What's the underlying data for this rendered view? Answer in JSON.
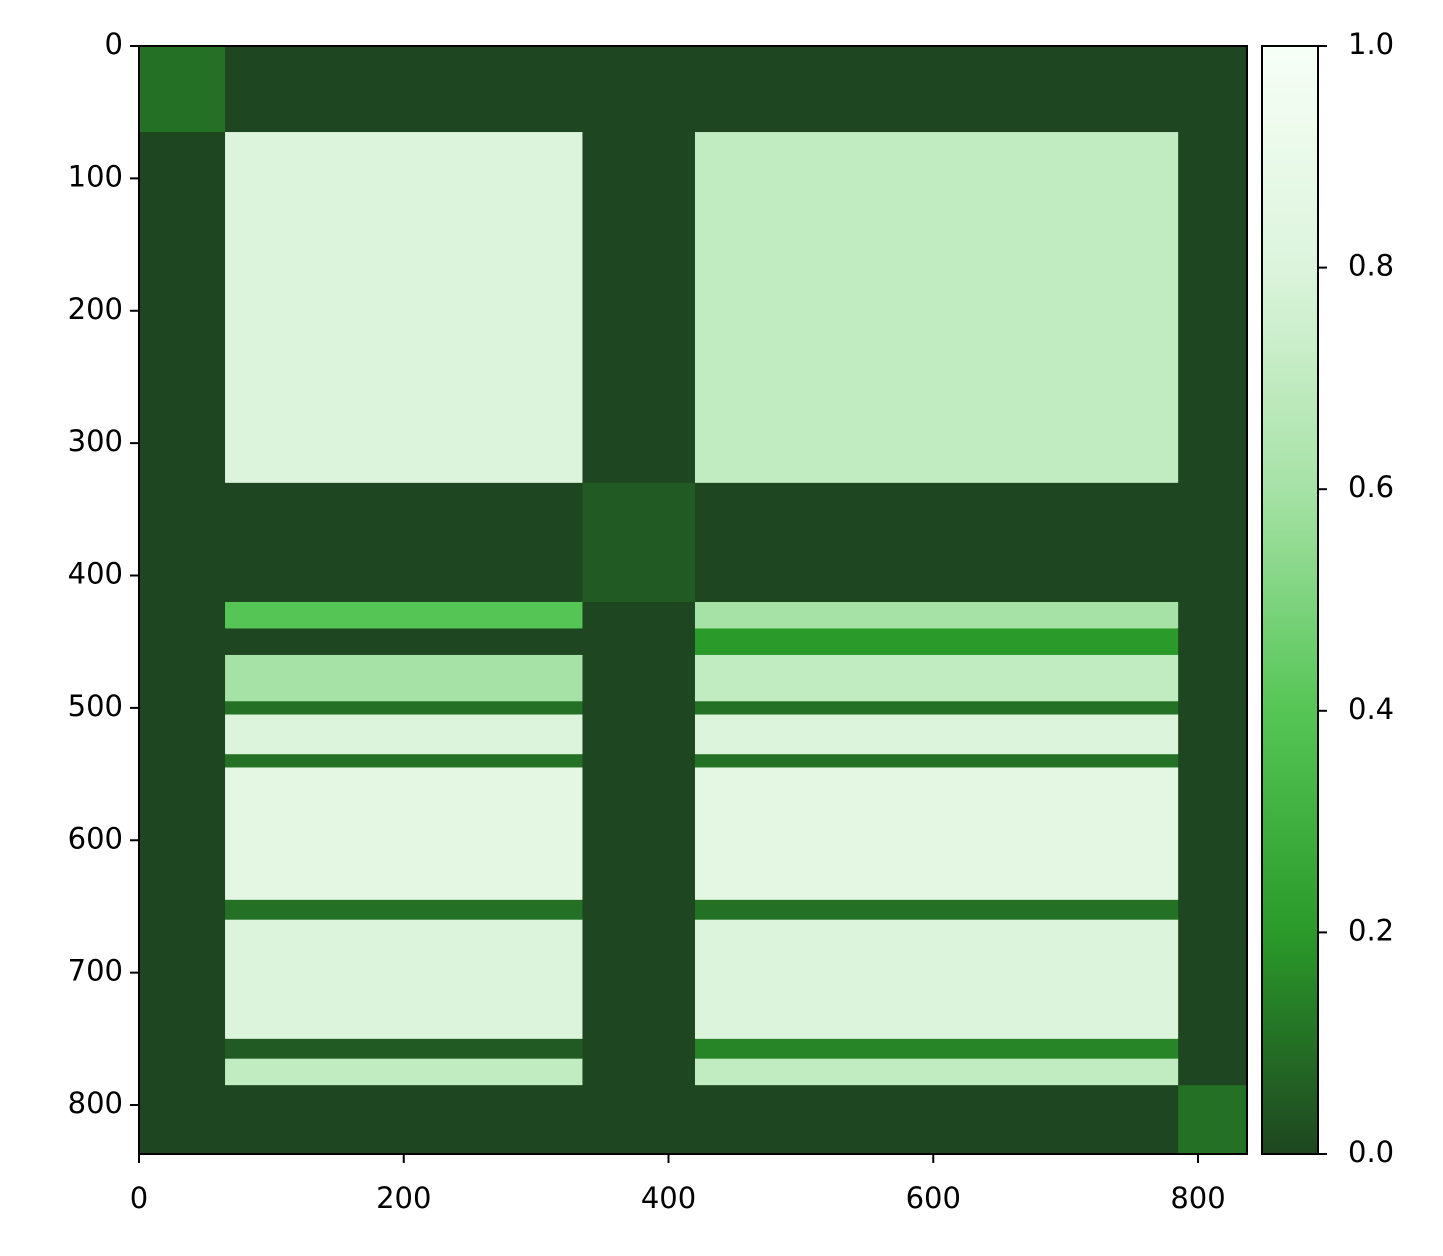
{
  "chart_data": {
    "type": "heatmap",
    "x_edges": [
      0,
      65,
      335,
      420,
      785,
      837
    ],
    "y_edges": [
      0,
      65,
      330,
      420,
      440,
      460,
      495,
      505,
      535,
      545,
      645,
      660,
      750,
      765,
      785,
      837
    ],
    "values": [
      [
        0.1,
        0,
        0,
        0,
        0
      ],
      [
        0,
        0.8,
        0,
        0.7,
        0
      ],
      [
        0,
        0,
        0.05,
        0,
        0
      ],
      [
        0,
        0.4,
        0,
        0.6,
        0
      ],
      [
        0,
        0,
        0,
        0.2,
        0
      ],
      [
        0,
        0.6,
        0,
        0.7,
        0
      ],
      [
        0,
        0.1,
        0,
        0.1,
        0
      ],
      [
        0,
        0.8,
        0,
        0.8,
        0
      ],
      [
        0,
        0.1,
        0,
        0.1,
        0
      ],
      [
        0,
        0.85,
        0,
        0.85,
        0
      ],
      [
        0,
        0.1,
        0,
        0.1,
        0
      ],
      [
        0,
        0.8,
        0,
        0.8,
        0
      ],
      [
        0,
        0.05,
        0,
        0.15,
        0
      ],
      [
        0,
        0.7,
        0,
        0.7,
        0
      ],
      [
        0,
        0,
        0,
        0,
        0.1
      ]
    ],
    "xlim": [
      0,
      837
    ],
    "ylim": [
      837,
      0
    ],
    "xticks": [
      0,
      200,
      400,
      600,
      800
    ],
    "yticks": [
      0,
      100,
      200,
      300,
      400,
      500,
      600,
      700,
      800
    ],
    "colormap": [
      "#1e4620",
      "#2a9a2a",
      "#55c555",
      "#a6e2a6",
      "#dcf4dc",
      "#f7fff7"
    ],
    "clim": [
      0,
      1
    ],
    "colorbar_ticks": [
      {
        "value": 0,
        "label": "0.0"
      },
      0.2,
      0.4,
      0.6,
      0.8,
      {
        "value": 1,
        "label": "1.0"
      }
    ]
  }
}
